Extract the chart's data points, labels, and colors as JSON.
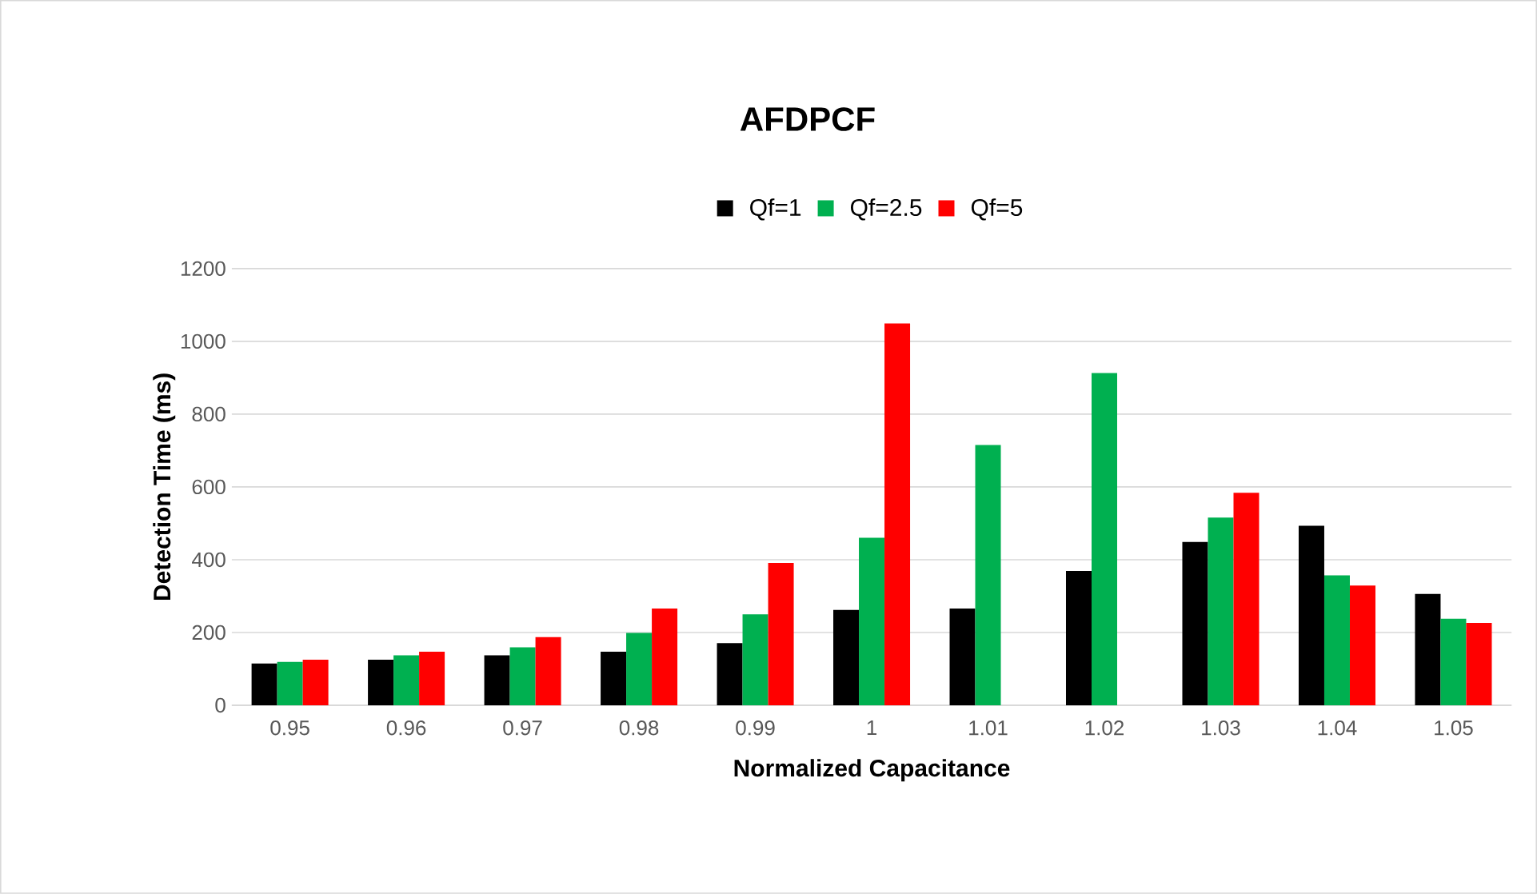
{
  "chart_data": {
    "type": "bar",
    "title": "AFDPCF",
    "xlabel": "Normalized Capacitance",
    "ylabel": "Detection Time (ms)",
    "categories": [
      "0.95",
      "0.96",
      "0.97",
      "0.98",
      "0.99",
      "1",
      "1.01",
      "1.02",
      "1.03",
      "1.04",
      "1.05"
    ],
    "series": [
      {
        "name": "Qf=1",
        "color": "#000000",
        "values": [
          115,
          125,
          137,
          147,
          171,
          262,
          266,
          369,
          449,
          493,
          306
        ]
      },
      {
        "name": "Qf=2.5",
        "color": "#00b050",
        "values": [
          119,
          137,
          159,
          199,
          250,
          460,
          715,
          913,
          516,
          357,
          238
        ]
      },
      {
        "name": "Qf=5",
        "color": "#ff0000",
        "values": [
          125,
          147,
          187,
          266,
          391,
          1049,
          null,
          null,
          584,
          329,
          226
        ]
      }
    ],
    "ylim": [
      0,
      1200
    ],
    "yticks": [
      0,
      200,
      400,
      600,
      800,
      1000,
      1200
    ],
    "grid": "y",
    "legend": "top"
  }
}
